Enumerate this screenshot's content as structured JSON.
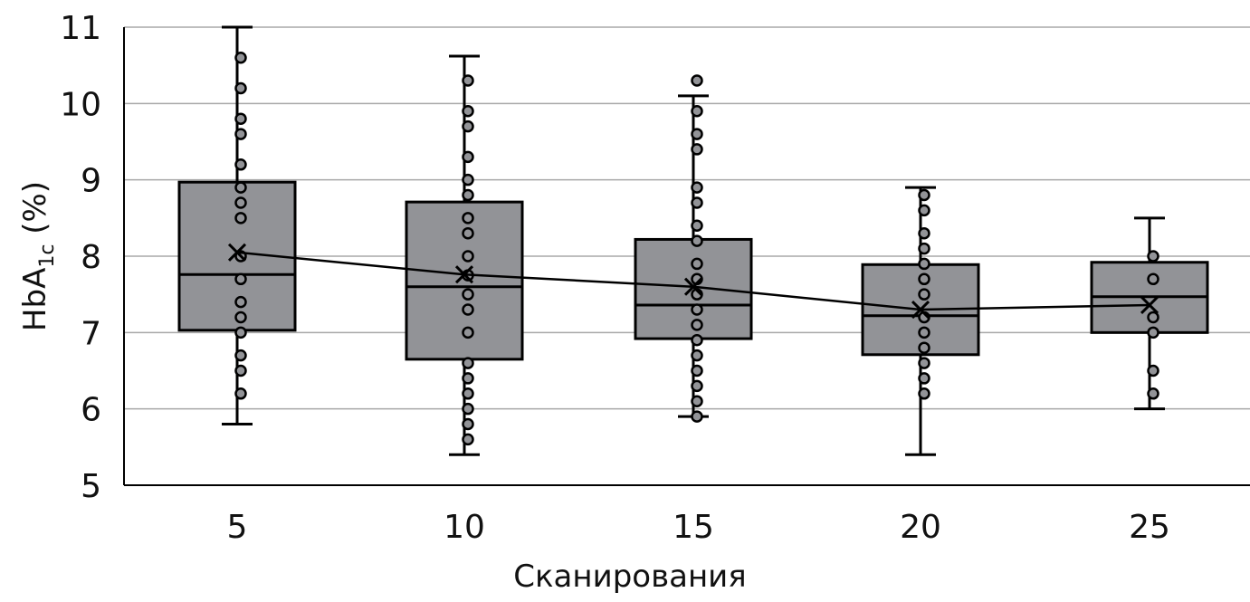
{
  "chart_data": {
    "type": "box",
    "title": "",
    "xlabel": "Сканирования",
    "ylabel": {
      "main": "HbA",
      "sub": "1c",
      "suffix": " (%)"
    },
    "ylim": [
      5,
      11
    ],
    "yticks": [
      "5",
      "6",
      "7",
      "8",
      "9",
      "10",
      "11"
    ],
    "grid": true,
    "categories": [
      "5",
      "10",
      "15",
      "20",
      "25"
    ],
    "box_color": "#929397",
    "boxes": [
      {
        "min": 5.8,
        "q1": 7.03,
        "median": 7.76,
        "q3": 8.97,
        "max": 11.0,
        "mean": 8.05,
        "points": [
          10.6,
          10.2,
          9.8,
          9.6,
          9.2,
          8.9,
          8.7,
          8.5,
          8.0,
          7.7,
          7.4,
          7.2,
          7.0,
          6.7,
          6.5,
          6.2
        ]
      },
      {
        "min": 5.4,
        "q1": 6.65,
        "median": 7.6,
        "q3": 8.71,
        "max": 10.62,
        "mean": 7.76,
        "points": [
          10.3,
          9.9,
          9.7,
          9.3,
          9.0,
          8.8,
          8.5,
          8.3,
          8.0,
          7.75,
          7.5,
          7.3,
          7.0,
          6.6,
          6.4,
          6.2,
          6.0,
          5.8,
          5.6
        ]
      },
      {
        "min": 5.9,
        "q1": 6.92,
        "median": 7.36,
        "q3": 8.22,
        "max": 10.1,
        "mean": 7.6,
        "points": [
          10.3,
          9.9,
          9.6,
          9.4,
          8.9,
          8.7,
          8.4,
          8.2,
          7.9,
          7.7,
          7.5,
          7.3,
          7.1,
          6.9,
          6.7,
          6.5,
          6.3,
          6.1,
          5.9
        ]
      },
      {
        "min": 5.4,
        "q1": 6.71,
        "median": 7.22,
        "q3": 7.89,
        "max": 8.9,
        "mean": 7.3,
        "points": [
          8.8,
          8.6,
          8.3,
          8.1,
          7.9,
          7.7,
          7.5,
          7.2,
          7.0,
          6.8,
          6.6,
          6.4,
          6.2
        ]
      },
      {
        "min": 6.0,
        "q1": 7.0,
        "median": 7.47,
        "q3": 7.92,
        "max": 8.5,
        "mean": 7.36,
        "points": [
          8.0,
          7.7,
          7.2,
          7.0,
          6.5,
          6.2
        ]
      }
    ]
  }
}
